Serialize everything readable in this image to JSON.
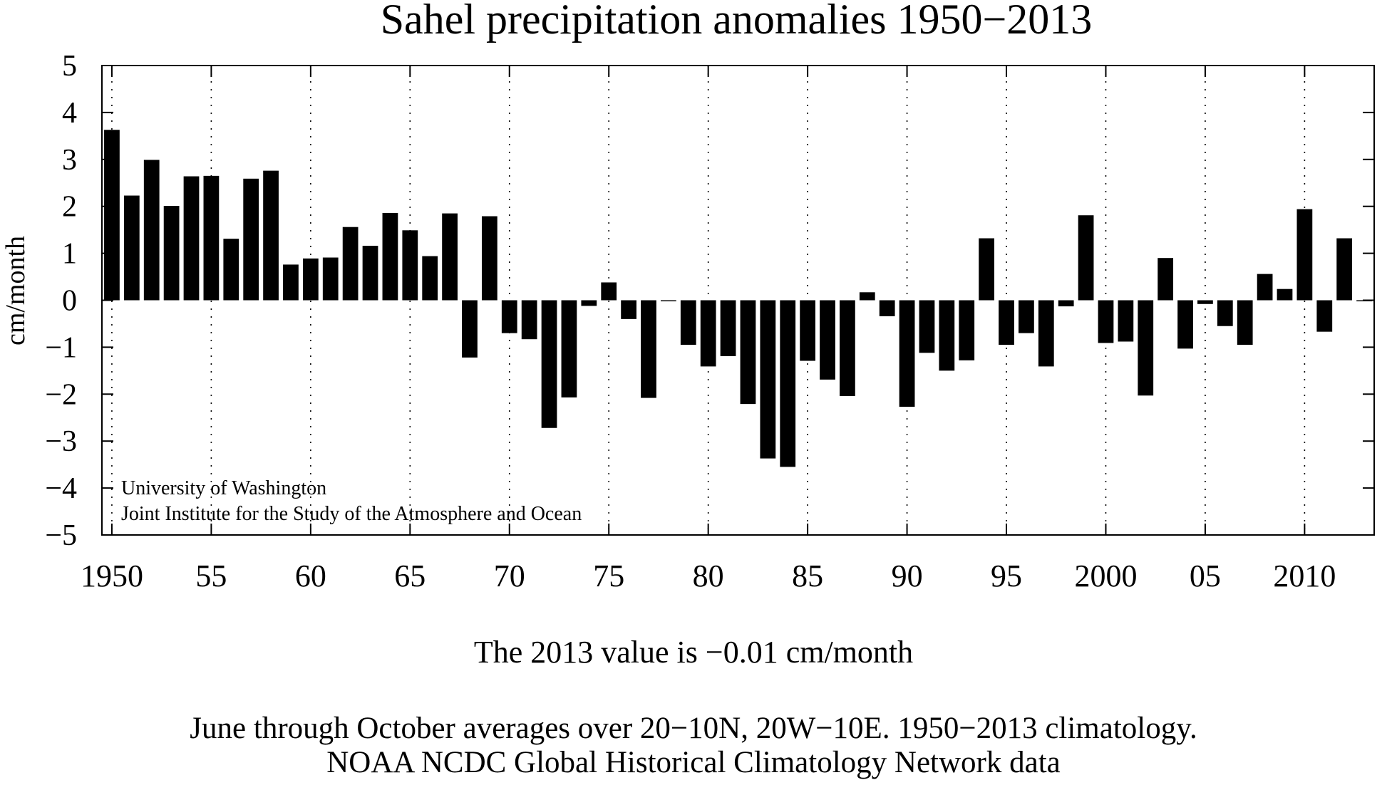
{
  "chart_data": {
    "type": "bar",
    "title": "Sahel precipitation anomalies 1950−2013",
    "xlabel": "",
    "ylabel": "cm/month",
    "ylim": [
      -5,
      5
    ],
    "xlim": [
      1949.5,
      2013.5
    ],
    "grid": "vertical dotted lines at labeled ticks",
    "yticks": [
      {
        "value": 5,
        "label": "5"
      },
      {
        "value": 4,
        "label": "4"
      },
      {
        "value": 3,
        "label": "3"
      },
      {
        "value": 2,
        "label": "2"
      },
      {
        "value": 1,
        "label": "1"
      },
      {
        "value": 0,
        "label": "0"
      },
      {
        "value": -1,
        "label": "−1"
      },
      {
        "value": -2,
        "label": "−2"
      },
      {
        "value": -3,
        "label": "−3"
      },
      {
        "value": -4,
        "label": "−4"
      },
      {
        "value": -5,
        "label": "−5"
      }
    ],
    "xticks": [
      {
        "value": 1950,
        "label": "1950"
      },
      {
        "value": 1955,
        "label": "55"
      },
      {
        "value": 1960,
        "label": "60"
      },
      {
        "value": 1965,
        "label": "65"
      },
      {
        "value": 1970,
        "label": "70"
      },
      {
        "value": 1975,
        "label": "75"
      },
      {
        "value": 1980,
        "label": "80"
      },
      {
        "value": 1985,
        "label": "85"
      },
      {
        "value": 1990,
        "label": "90"
      },
      {
        "value": 1995,
        "label": "95"
      },
      {
        "value": 2000,
        "label": "2000"
      },
      {
        "value": 2005,
        "label": "05"
      },
      {
        "value": 2010,
        "label": "2010"
      }
    ],
    "x": [
      1950,
      1951,
      1952,
      1953,
      1954,
      1955,
      1956,
      1957,
      1958,
      1959,
      1960,
      1961,
      1962,
      1963,
      1964,
      1965,
      1966,
      1967,
      1968,
      1969,
      1970,
      1971,
      1972,
      1973,
      1974,
      1975,
      1976,
      1977,
      1978,
      1979,
      1980,
      1981,
      1982,
      1983,
      1984,
      1985,
      1986,
      1987,
      1988,
      1989,
      1990,
      1991,
      1992,
      1993,
      1994,
      1995,
      1996,
      1997,
      1998,
      1999,
      2000,
      2001,
      2002,
      2003,
      2004,
      2005,
      2006,
      2007,
      2008,
      2009,
      2010,
      2011,
      2012,
      2013
    ],
    "values": [
      3.63,
      2.23,
      2.99,
      2.01,
      2.64,
      2.65,
      1.31,
      2.59,
      2.76,
      0.76,
      0.89,
      0.91,
      1.56,
      1.16,
      1.86,
      1.49,
      0.94,
      1.85,
      -1.22,
      1.79,
      -0.7,
      -0.83,
      -2.72,
      -2.07,
      -0.12,
      0.38,
      -0.4,
      -2.08,
      -0.02,
      -0.95,
      -1.41,
      -1.19,
      -2.21,
      -3.37,
      -3.55,
      -1.29,
      -1.69,
      -2.04,
      0.17,
      -0.34,
      -2.27,
      -1.12,
      -1.5,
      -1.28,
      1.32,
      -0.95,
      -0.7,
      -1.41,
      -0.13,
      1.81,
      -0.91,
      -0.88,
      -2.03,
      0.9,
      -1.03,
      -0.08,
      -0.55,
      -0.95,
      0.56,
      0.24,
      1.94,
      -0.67,
      1.32,
      -0.01
    ],
    "annotations": [
      "University of Washington",
      "Joint Institute for the Study of the Atmosphere and Ocean"
    ]
  },
  "captions": {
    "latest_value": "The 2013 value is −0.01 cm/month",
    "description": "June through October averages over 20−10N, 20W−10E. 1950−2013 climatology.",
    "source": "NOAA NCDC Global Historical Climatology Network data"
  },
  "colors": {
    "bar": "#000000",
    "axis": "#000000",
    "grid": "#000000",
    "background": "#ffffff"
  }
}
